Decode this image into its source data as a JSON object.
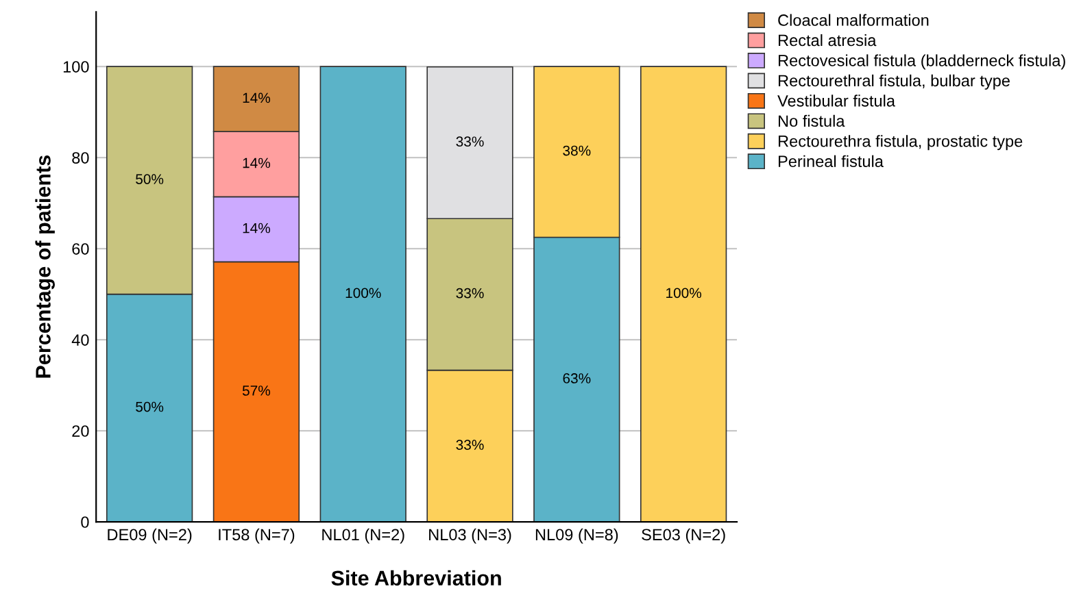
{
  "chart_data": {
    "type": "bar",
    "stacked": true,
    "xlabel": "Site Abbreviation",
    "ylabel": "Percentage of patients",
    "categories": [
      "DE09 (N=2)",
      "IT58 (N=7)",
      "NL01 (N=2)",
      "NL03 (N=3)",
      "NL09 (N=8)",
      "SE03 (N=2)"
    ],
    "series": [
      {
        "name": "Perineal fistula",
        "color": "#5bb3c8",
        "values": [
          50,
          null,
          100,
          null,
          62.5,
          null
        ],
        "value_labels": [
          "50%",
          null,
          "100%",
          null,
          "63%",
          null
        ]
      },
      {
        "name": "Rectourethra fistula, prostatic type",
        "color": "#fdd05a",
        "values": [
          null,
          null,
          null,
          33.3,
          37.5,
          100
        ],
        "value_labels": [
          null,
          null,
          null,
          "33%",
          "38%",
          "100%"
        ]
      },
      {
        "name": "No fistula",
        "color": "#c8c47f",
        "values": [
          50,
          null,
          null,
          33.3,
          null,
          null
        ],
        "value_labels": [
          "50%",
          null,
          null,
          "33%",
          null,
          null
        ]
      },
      {
        "name": "Vestibular fistula",
        "color": "#f97516",
        "values": [
          null,
          57.1,
          null,
          null,
          null,
          null
        ],
        "value_labels": [
          null,
          "57%",
          null,
          null,
          null,
          null
        ]
      },
      {
        "name": "Rectourethral fistula, bulbar type",
        "color": "#e0e0e2",
        "values": [
          null,
          null,
          null,
          33.3,
          null,
          null
        ],
        "value_labels": [
          null,
          null,
          null,
          "33%",
          null,
          null
        ]
      },
      {
        "name": "Rectovesical fistula (bladderneck fistula)",
        "color": "#ccaaff",
        "values": [
          null,
          14.3,
          null,
          null,
          null,
          null
        ],
        "value_labels": [
          null,
          "14%",
          null,
          null,
          null,
          null
        ]
      },
      {
        "name": "Rectal atresia",
        "color": "#ff9f9f",
        "values": [
          null,
          14.3,
          null,
          null,
          null,
          null
        ],
        "value_labels": [
          null,
          "14%",
          null,
          null,
          null,
          null
        ]
      },
      {
        "name": "Cloacal malformation",
        "color": "#d08a44",
        "values": [
          null,
          14.3,
          null,
          null,
          null,
          null
        ],
        "value_labels": [
          null,
          "14%",
          null,
          null,
          null,
          null
        ]
      }
    ],
    "ylim": [
      0,
      112
    ],
    "yticks": [
      0,
      20,
      40,
      60,
      80,
      100
    ],
    "grid": "y",
    "legend": "top right"
  }
}
